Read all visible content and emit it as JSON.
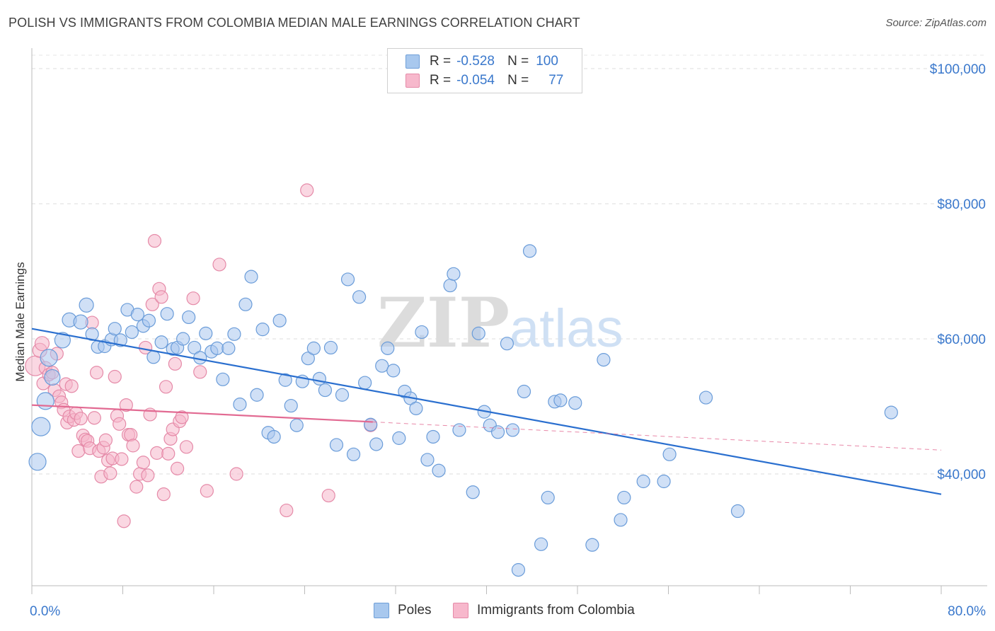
{
  "title": "POLISH VS IMMIGRANTS FROM COLOMBIA MEDIAN MALE EARNINGS CORRELATION CHART",
  "source": "Source: ZipAtlas.com",
  "watermark": {
    "zip": "ZIP",
    "atlas": "atlas"
  },
  "legend": {
    "r_label": "R =",
    "n_label": "N =",
    "rows": [
      {
        "r": "-0.528",
        "n": "100",
        "color": "#a8c8ee",
        "border": "#6f9fd8"
      },
      {
        "r": "-0.054",
        "n": "77",
        "color": "#f7b8cc",
        "border": "#e58aa8"
      }
    ]
  },
  "bottom_legend": {
    "series1": "Poles",
    "series2": "Immigrants from Colombia"
  },
  "colors": {
    "blue_fill": "#a9c7ee",
    "blue_stroke": "#6a9cd9",
    "blue_line": "#2a6fcf",
    "pink_fill": "#f6b7cb",
    "pink_stroke": "#e58aa8",
    "pink_line": "#e26a92",
    "axis_text": "#3a78cc"
  },
  "chart_data": {
    "type": "scatter",
    "title": "POLISH VS IMMIGRANTS FROM COLOMBIA MEDIAN MALE EARNINGS CORRELATION CHART",
    "ylabel": "Median Male Earnings",
    "xlabel": "",
    "xlim": [
      0,
      80
    ],
    "ylim": [
      22000,
      103000
    ],
    "x_tick_labels": {
      "min": "0.0%",
      "max": "80.0%"
    },
    "y_ticks": [
      {
        "value": 40000,
        "label": "$40,000"
      },
      {
        "value": 60000,
        "label": "$60,000"
      },
      {
        "value": 80000,
        "label": "$80,000"
      },
      {
        "value": 100000,
        "label": "$100,000"
      }
    ],
    "grid": "dashed horizontal",
    "legend_position": "top-center",
    "series": [
      {
        "name": "Poles",
        "r": -0.528,
        "n": 100,
        "trend": {
          "x0": 0,
          "y0": 61500,
          "x1": 80,
          "y1": 37000,
          "dashed_from": null
        },
        "points": [
          [
            0.5,
            41800,
            12
          ],
          [
            0.8,
            47000,
            13
          ],
          [
            1.2,
            50800,
            12
          ],
          [
            1.5,
            57200,
            12
          ],
          [
            1.8,
            54300,
            11
          ],
          [
            2.7,
            59800,
            11
          ],
          [
            3.3,
            62800,
            10
          ],
          [
            4.3,
            62500,
            10
          ],
          [
            4.8,
            65000,
            10
          ],
          [
            5.3,
            60700,
            9
          ],
          [
            5.8,
            58800,
            9
          ],
          [
            6.4,
            58900,
            9
          ],
          [
            7.0,
            59900,
            9
          ],
          [
            7.3,
            61500,
            9
          ],
          [
            7.8,
            59800,
            9
          ],
          [
            8.4,
            64300,
            9
          ],
          [
            8.8,
            61000,
            9
          ],
          [
            9.3,
            63600,
            9
          ],
          [
            9.8,
            61900,
            9
          ],
          [
            10.3,
            62700,
            9
          ],
          [
            10.7,
            57300,
            9
          ],
          [
            11.4,
            59500,
            9
          ],
          [
            11.9,
            63700,
            9
          ],
          [
            12.4,
            58500,
            9
          ],
          [
            12.8,
            58700,
            9
          ],
          [
            13.3,
            60000,
            9
          ],
          [
            13.8,
            63200,
            9
          ],
          [
            14.3,
            58700,
            9
          ],
          [
            14.8,
            57200,
            9
          ],
          [
            15.3,
            60800,
            9
          ],
          [
            15.8,
            58100,
            9
          ],
          [
            16.3,
            58600,
            9
          ],
          [
            16.8,
            54000,
            9
          ],
          [
            17.3,
            58600,
            9
          ],
          [
            17.8,
            60700,
            9
          ],
          [
            18.3,
            50300,
            9
          ],
          [
            18.8,
            65100,
            9
          ],
          [
            19.3,
            69200,
            9
          ],
          [
            19.8,
            51700,
            9
          ],
          [
            20.3,
            61400,
            9
          ],
          [
            20.8,
            46100,
            9
          ],
          [
            21.3,
            45500,
            9
          ],
          [
            21.8,
            62700,
            9
          ],
          [
            22.3,
            53900,
            9
          ],
          [
            22.8,
            50100,
            9
          ],
          [
            23.3,
            47200,
            9
          ],
          [
            23.8,
            53700,
            9
          ],
          [
            24.3,
            57100,
            9
          ],
          [
            24.8,
            58600,
            9
          ],
          [
            25.3,
            54100,
            9
          ],
          [
            25.8,
            52400,
            9
          ],
          [
            26.3,
            58700,
            9
          ],
          [
            26.8,
            44300,
            9
          ],
          [
            27.3,
            51700,
            9
          ],
          [
            27.8,
            68800,
            9
          ],
          [
            28.3,
            42900,
            9
          ],
          [
            28.8,
            66200,
            9
          ],
          [
            29.3,
            53500,
            9
          ],
          [
            29.8,
            47300,
            9
          ],
          [
            30.3,
            44400,
            9
          ],
          [
            30.8,
            56000,
            9
          ],
          [
            31.3,
            58600,
            9
          ],
          [
            31.8,
            55300,
            9
          ],
          [
            32.3,
            45300,
            9
          ],
          [
            32.8,
            52200,
            9
          ],
          [
            33.3,
            51200,
            9
          ],
          [
            33.8,
            49700,
            9
          ],
          [
            34.3,
            61000,
            9
          ],
          [
            34.8,
            42100,
            9
          ],
          [
            35.3,
            45500,
            9
          ],
          [
            35.8,
            40500,
            9
          ],
          [
            36.8,
            67900,
            9
          ],
          [
            37.1,
            69600,
            9
          ],
          [
            37.6,
            46500,
            9
          ],
          [
            38.8,
            37300,
            9
          ],
          [
            39.3,
            60800,
            9
          ],
          [
            39.8,
            49200,
            9
          ],
          [
            40.3,
            47200,
            9
          ],
          [
            41.0,
            46200,
            9
          ],
          [
            41.8,
            59300,
            9
          ],
          [
            42.3,
            46500,
            9
          ],
          [
            42.8,
            25800,
            9
          ],
          [
            43.3,
            52200,
            9
          ],
          [
            43.8,
            73000,
            9
          ],
          [
            44.8,
            29600,
            9
          ],
          [
            45.4,
            36500,
            9
          ],
          [
            46.0,
            50700,
            9
          ],
          [
            46.5,
            50900,
            9
          ],
          [
            47.8,
            50500,
            9
          ],
          [
            49.3,
            29500,
            9
          ],
          [
            50.3,
            56900,
            9
          ],
          [
            51.8,
            33200,
            9
          ],
          [
            52.1,
            36500,
            9
          ],
          [
            53.8,
            38900,
            9
          ],
          [
            55.6,
            38900,
            9
          ],
          [
            56.1,
            42900,
            9
          ],
          [
            59.3,
            51300,
            9
          ],
          [
            62.1,
            34500,
            9
          ],
          [
            75.6,
            49100,
            9
          ]
        ]
      },
      {
        "name": "Immigrants from Colombia",
        "r": -0.054,
        "n": 77,
        "trend": {
          "x0": 0,
          "y0": 50200,
          "x1": 30,
          "y1": 47700,
          "dashed_to": 80
        },
        "points": [
          [
            0.3,
            56000,
            14
          ],
          [
            0.7,
            58300,
            10
          ],
          [
            0.9,
            59300,
            10
          ],
          [
            1.0,
            53400,
            9
          ],
          [
            1.2,
            55700,
            9
          ],
          [
            1.5,
            54700,
            9
          ],
          [
            1.8,
            55000,
            9
          ],
          [
            2.0,
            52400,
            9
          ],
          [
            2.2,
            57800,
            9
          ],
          [
            2.4,
            51500,
            9
          ],
          [
            2.6,
            50600,
            9
          ],
          [
            2.8,
            49500,
            9
          ],
          [
            3.0,
            53300,
            9
          ],
          [
            3.1,
            47600,
            9
          ],
          [
            3.3,
            48500,
            9
          ],
          [
            3.5,
            53000,
            9
          ],
          [
            3.7,
            48000,
            9
          ],
          [
            3.9,
            49000,
            9
          ],
          [
            4.1,
            43400,
            9
          ],
          [
            4.3,
            48200,
            9
          ],
          [
            4.5,
            45700,
            9
          ],
          [
            4.7,
            45100,
            9
          ],
          [
            4.9,
            44900,
            9
          ],
          [
            5.1,
            43800,
            9
          ],
          [
            5.3,
            62400,
            9
          ],
          [
            5.5,
            48300,
            9
          ],
          [
            5.7,
            55000,
            9
          ],
          [
            5.9,
            43400,
            9
          ],
          [
            6.1,
            39600,
            9
          ],
          [
            6.3,
            43900,
            9
          ],
          [
            6.5,
            45000,
            9
          ],
          [
            6.7,
            42000,
            9
          ],
          [
            6.9,
            40100,
            9
          ],
          [
            7.1,
            42300,
            9
          ],
          [
            7.3,
            54400,
            9
          ],
          [
            7.5,
            48600,
            9
          ],
          [
            7.7,
            47400,
            9
          ],
          [
            7.9,
            42200,
            9
          ],
          [
            8.1,
            33000,
            9
          ],
          [
            8.3,
            50200,
            9
          ],
          [
            8.5,
            45800,
            9
          ],
          [
            8.7,
            45800,
            9
          ],
          [
            8.9,
            44200,
            9
          ],
          [
            9.2,
            38100,
            9
          ],
          [
            9.5,
            40000,
            9
          ],
          [
            9.8,
            41700,
            9
          ],
          [
            10.0,
            58700,
            9
          ],
          [
            10.2,
            39800,
            9
          ],
          [
            10.4,
            48800,
            9
          ],
          [
            10.6,
            65100,
            9
          ],
          [
            10.8,
            74500,
            9
          ],
          [
            11.0,
            43100,
            9
          ],
          [
            11.2,
            67400,
            9
          ],
          [
            11.4,
            66200,
            9
          ],
          [
            11.6,
            37000,
            9
          ],
          [
            11.8,
            52900,
            9
          ],
          [
            12.0,
            43000,
            9
          ],
          [
            12.2,
            45200,
            9
          ],
          [
            12.4,
            46600,
            9
          ],
          [
            12.6,
            56300,
            9
          ],
          [
            12.8,
            40800,
            9
          ],
          [
            13.0,
            47800,
            9
          ],
          [
            13.2,
            48400,
            9
          ],
          [
            13.6,
            44000,
            9
          ],
          [
            14.2,
            66000,
            9
          ],
          [
            14.8,
            55100,
            9
          ],
          [
            15.4,
            37500,
            9
          ],
          [
            16.5,
            71000,
            9
          ],
          [
            18.0,
            40000,
            9
          ],
          [
            22.4,
            34600,
            9
          ],
          [
            24.2,
            82000,
            9
          ],
          [
            26.1,
            36800,
            9
          ],
          [
            29.8,
            47200,
            9
          ]
        ]
      }
    ]
  }
}
